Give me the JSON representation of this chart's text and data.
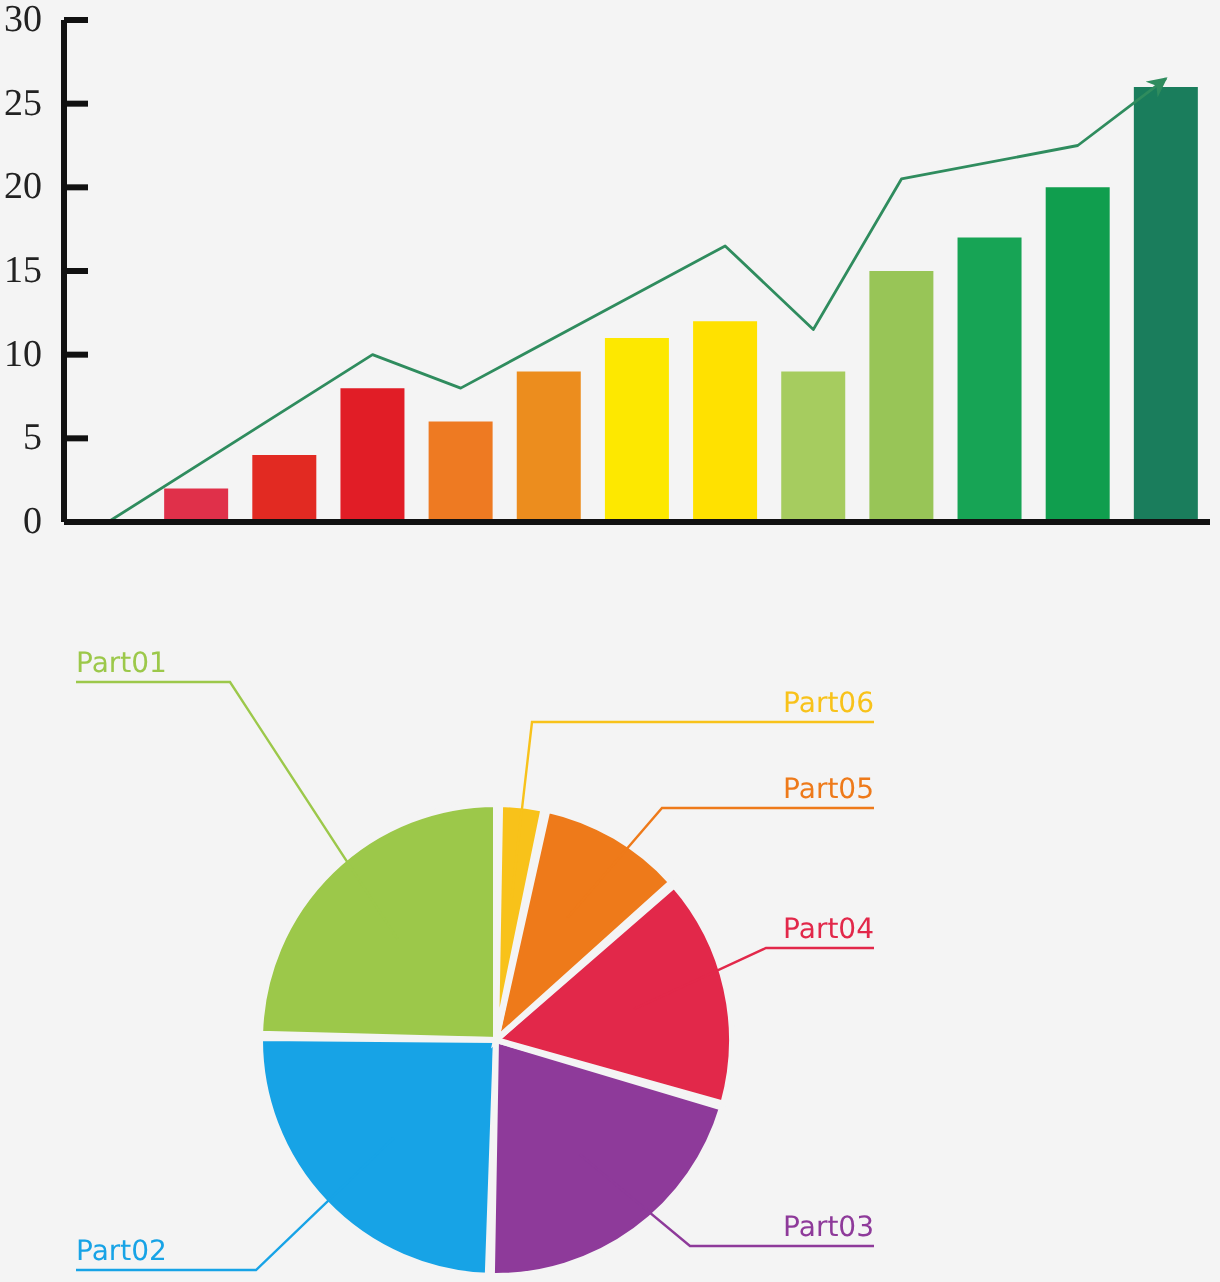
{
  "chart_data": [
    {
      "type": "bar",
      "categories": [
        null,
        null,
        null,
        null,
        null,
        null,
        null,
        null,
        null,
        null,
        null,
        null,
        null
      ],
      "series": [
        {
          "type": "bar",
          "colors": [
            null,
            "#e0304a",
            "#e22a22",
            "#e11d26",
            "#ee7a22",
            "#ec8d1e",
            "#fde800",
            "#ffe100",
            "#a6cc5f",
            "#98c557",
            "#17a455",
            "#109e4e",
            "#1a7d5c"
          ],
          "values": [
            null,
            2,
            4,
            8,
            6,
            9,
            11,
            12,
            9,
            15,
            17,
            20,
            26
          ]
        },
        {
          "type": "line",
          "color": "#2f8c5e",
          "values": [
            0,
            null,
            null,
            10,
            8,
            null,
            null,
            16.5,
            11.5,
            20.5,
            null,
            22.5,
            26.5
          ]
        }
      ],
      "ylim": [
        0,
        30
      ],
      "yticks": [
        0,
        5,
        10,
        15,
        20,
        25,
        30
      ],
      "tick_labels": "y",
      "marker": "none"
    },
    {
      "type": "pie",
      "categories": [
        "Part01",
        "Part02",
        "Part03",
        "Part04",
        "Part05",
        "Part06"
      ],
      "values": [
        25,
        25,
        21,
        16,
        10,
        3
      ],
      "colors": [
        "#9cc84a",
        "#17a3e6",
        "#8e3a9a",
        "#e2284a",
        "#ee7a1a",
        "#f8c21a"
      ]
    }
  ]
}
